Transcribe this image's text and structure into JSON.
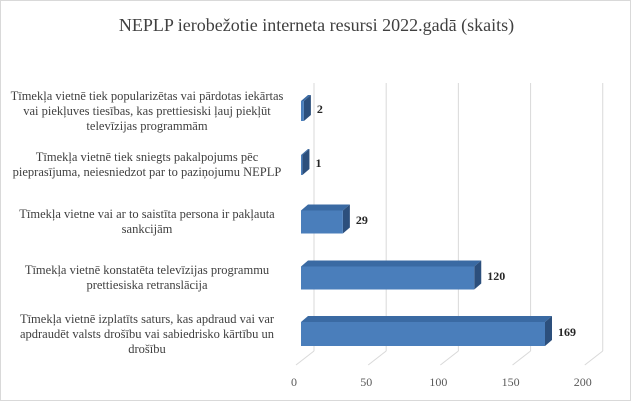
{
  "chart_data": {
    "type": "bar",
    "orientation": "horizontal",
    "style": "3d",
    "title": "NEPLP ierobežotie interneta resursi 2022.gadā (skaits)",
    "categories": [
      "Tīmekļa vietnē tiek popularizētas vai pārdotas iekārtas vai piekļuves tiesības, kas prettiesiski ļauj piekļūt televīzijas programmām",
      "Tīmekļa vietnē tiek sniegts pakalpojums pēc pieprasījuma, neiesniedzot par to paziņojumu NEPLP",
      "Tīmekļa vietne vai ar to saistīta persona ir pakļauta sankcijām",
      "Tīmekļa vietnē konstatēta televīzijas programmu prettiesiska retranslācija",
      "Tīmekļa vietnē izplatīts saturs, kas apdraud vai var apdraudēt valsts drošību vai sabiedrisko kārtību un drošību"
    ],
    "values": [
      2,
      1,
      29,
      120,
      169
    ],
    "data_labels": [
      "2",
      "1",
      "29",
      "120",
      "169"
    ],
    "xlim": [
      0,
      200
    ],
    "xticks": [
      "0",
      "50",
      "100",
      "150",
      "200"
    ],
    "grid": true,
    "legend": "none",
    "colors": {
      "front": "#4a7ebb",
      "top": "#3a6aa3",
      "side": "#2c4f7c",
      "grid": "#d9d9d9"
    }
  }
}
